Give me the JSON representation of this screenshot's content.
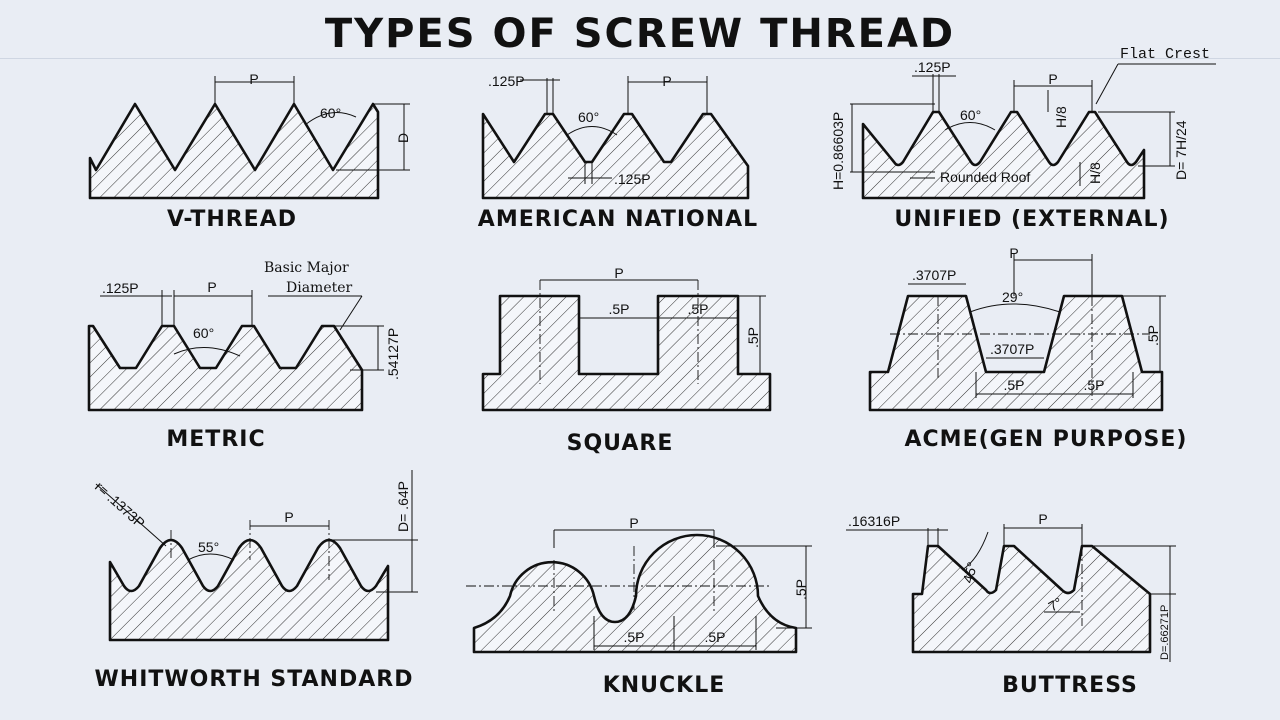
{
  "title": "TYPES OF SCREW THREAD",
  "threads": [
    {
      "name": "V-THREAD",
      "labels": {
        "pitch": "P",
        "angle": "60°",
        "depth": "D"
      }
    },
    {
      "name": "AMERICAN NATIONAL",
      "labels": {
        "flat_top": ".125P",
        "pitch": "P",
        "angle": "60°",
        "flat_root": ".125P"
      }
    },
    {
      "name": "UNIFIED (EXTERNAL)",
      "labels": {
        "flat_crest": "Flat Crest",
        "flat_top": ".125P",
        "pitch": "P",
        "height": "H=0.86603P",
        "angle": "60°",
        "h_top": "H/8",
        "rounded_root": "Rounded Roof",
        "h_bottom": "H/8",
        "depth": "D= 7H/24"
      }
    },
    {
      "name": "METRIC",
      "labels": {
        "flat": ".125P",
        "pitch": "P",
        "basic_major": "Basic Major",
        "diameter": "Diameter",
        "angle": "60°",
        "depth": ".54127P"
      }
    },
    {
      "name": "SQUARE",
      "labels": {
        "pitch": "P",
        "gap": ".5P",
        "tooth": ".5P",
        "depth": ".5P"
      }
    },
    {
      "name": "ACME(GEN PURPOSE)",
      "labels": {
        "pitch": "P",
        "flat_top": ".3707P",
        "angle": "29°",
        "flat_root": ".3707P",
        "depth": ".5P",
        "half_left": ".5P",
        "half_right": ".5P"
      }
    },
    {
      "name": "WHITWORTH STANDARD",
      "labels": {
        "radius": "r= .1373P",
        "angle": "55°",
        "pitch": "P",
        "depth": "D= .64P"
      }
    },
    {
      "name": "KNUCKLE",
      "labels": {
        "pitch": "P",
        "depth": ".5P",
        "half_left": ".5P",
        "half_right": ".5P"
      }
    },
    {
      "name": "BUTTRESS",
      "labels": {
        "flat": ".16316P",
        "pitch": "P",
        "angle": "45°",
        "small_angle": "7°",
        "depth": "D=.66271P"
      }
    }
  ]
}
